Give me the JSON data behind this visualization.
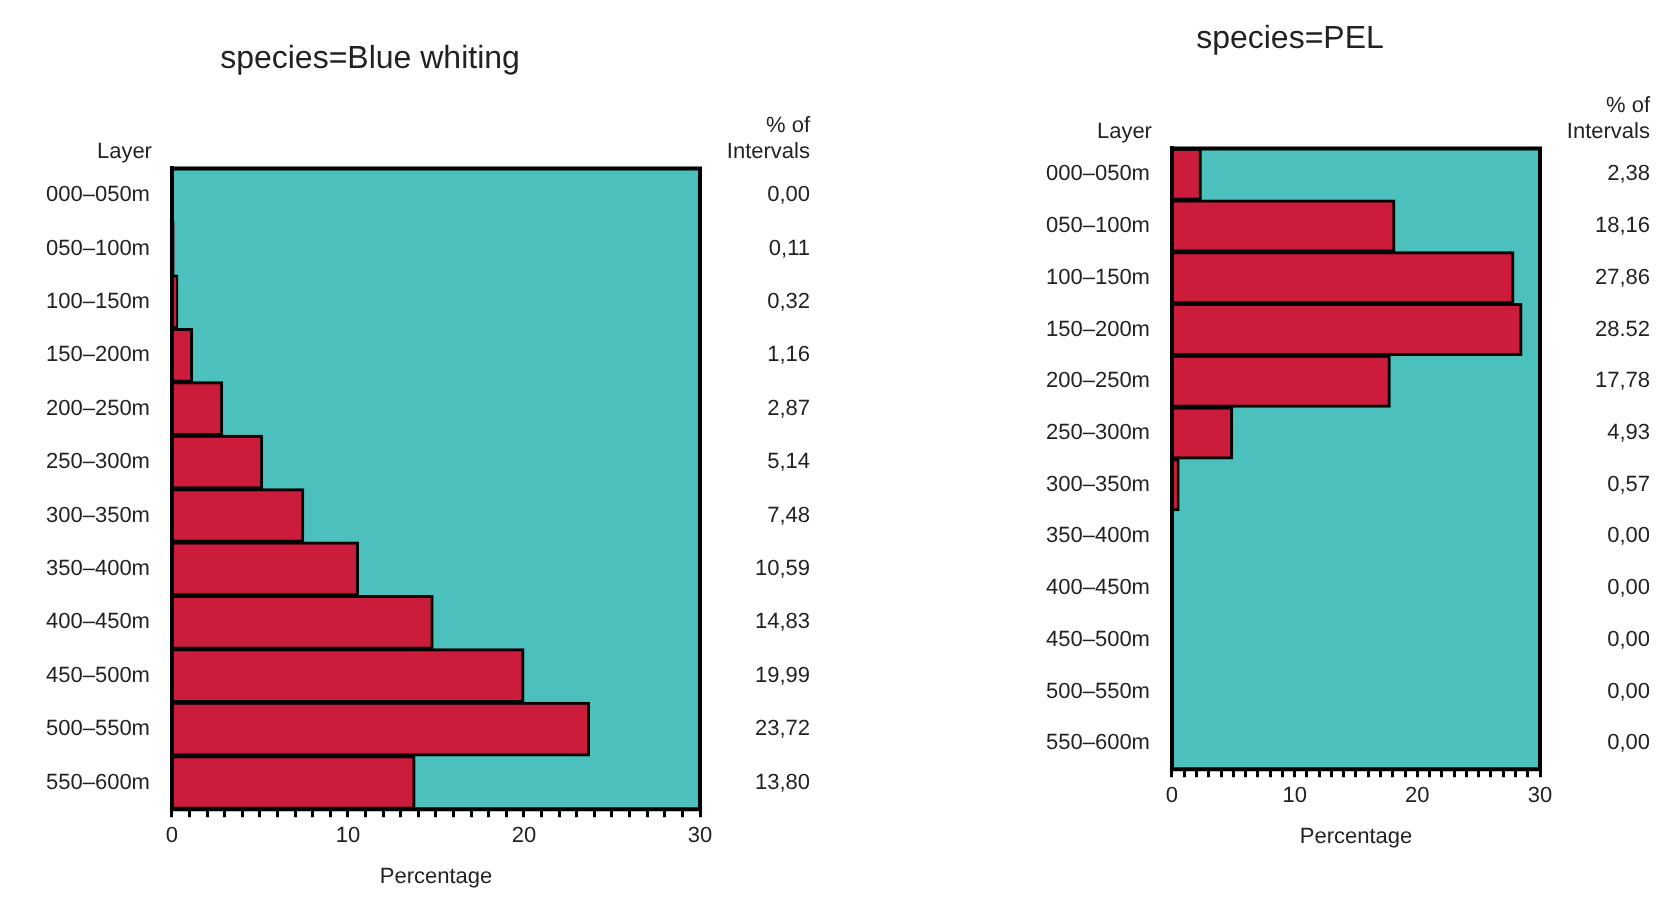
{
  "chart_data": [
    {
      "type": "bar",
      "orientation": "horizontal",
      "title": "species=Blue whiting",
      "xlabel": "Percentage",
      "ylabel": "Layer",
      "categories": [
        "000–050m",
        "050–100m",
        "100–150m",
        "150–200m",
        "200–250m",
        "250–300m",
        "300–350m",
        "350–400m",
        "400–450m",
        "450–500m",
        "500–550m",
        "550–600m"
      ],
      "values": [
        0,
        0.11,
        0.32,
        1.16,
        2.87,
        5.14,
        7.48,
        10.59,
        14.83,
        19.99,
        23.72,
        13.8
      ],
      "value_labels": [
        "0,00",
        "0,11",
        "0,32",
        "1,16",
        "2,87",
        "5,14",
        "7,48",
        "10,59",
        "14,83",
        "19,99",
        "23,72",
        "13,80"
      ],
      "color": "#cc1c3c",
      "annotations": [
        "% of\nIntervals"
      ],
      "xlim": [
        0,
        30
      ],
      "xticks": [
        0,
        {
          "value": 1,
          "label": null
        },
        {
          "value": 2,
          "label": null
        },
        {
          "value": 3,
          "label": null
        },
        {
          "value": 4,
          "label": null
        },
        {
          "value": 5,
          "label": null
        },
        {
          "value": 6,
          "label": null
        },
        {
          "value": 7,
          "label": null
        },
        {
          "value": 8,
          "label": null
        },
        {
          "value": 9,
          "label": null
        },
        10,
        {
          "value": 11,
          "label": null
        },
        {
          "value": 12,
          "label": null
        },
        {
          "value": 13,
          "label": null
        },
        {
          "value": 14,
          "label": null
        },
        {
          "value": 15,
          "label": null
        },
        {
          "value": 16,
          "label": null
        },
        {
          "value": 17,
          "label": null
        },
        {
          "value": 18,
          "label": null
        },
        {
          "value": 19,
          "label": null
        },
        20,
        {
          "value": 21,
          "label": null
        },
        {
          "value": 22,
          "label": null
        },
        {
          "value": 23,
          "label": null
        },
        {
          "value": 24,
          "label": null
        },
        {
          "value": 25,
          "label": null
        },
        {
          "value": 26,
          "label": null
        },
        {
          "value": 27,
          "label": null
        },
        {
          "value": 28,
          "label": null
        },
        {
          "value": 29,
          "label": null
        },
        30
      ],
      "legend": false
    },
    {
      "type": "bar",
      "orientation": "horizontal",
      "title": "species=PEL",
      "xlabel": "Percentage",
      "ylabel": "Layer",
      "categories": [
        "000–050m",
        "050–100m",
        "100–150m",
        "150–200m",
        "200–250m",
        "250–300m",
        "300–350m",
        "350–400m",
        "400–450m",
        "450–500m",
        "500–550m",
        "550–600m"
      ],
      "values": [
        2.38,
        18.16,
        27.86,
        28.52,
        17.78,
        4.93,
        0.57,
        0,
        0,
        0,
        0,
        0
      ],
      "value_labels": [
        "2,38",
        "18,16",
        "27,86",
        "28.52",
        "17,78",
        "4,93",
        "0,57",
        "0,00",
        "0,00",
        "0,00",
        "0,00",
        "0,00"
      ],
      "color": "#cc1c3c",
      "annotations": [
        "% of\nIntervals"
      ],
      "xlim": [
        0,
        30
      ],
      "xticks": [
        0,
        {
          "value": 1,
          "label": null
        },
        {
          "value": 2,
          "label": null
        },
        {
          "value": 3,
          "label": null
        },
        {
          "value": 4,
          "label": null
        },
        {
          "value": 5,
          "label": null
        },
        {
          "value": 6,
          "label": null
        },
        {
          "value": 7,
          "label": null
        },
        {
          "value": 8,
          "label": null
        },
        {
          "value": 9,
          "label": null
        },
        10,
        {
          "value": 11,
          "label": null
        },
        {
          "value": 12,
          "label": null
        },
        {
          "value": 13,
          "label": null
        },
        {
          "value": 14,
          "label": null
        },
        {
          "value": 15,
          "label": null
        },
        {
          "value": 16,
          "label": null
        },
        {
          "value": 17,
          "label": null
        },
        {
          "value": 18,
          "label": null
        },
        {
          "value": 19,
          "label": null
        },
        20,
        {
          "value": 21,
          "label": null
        },
        {
          "value": 22,
          "label": null
        },
        {
          "value": 23,
          "label": null
        },
        {
          "value": 24,
          "label": null
        },
        {
          "value": 25,
          "label": null
        },
        {
          "value": 26,
          "label": null
        },
        {
          "value": 27,
          "label": null
        },
        {
          "value": 28,
          "label": null
        },
        {
          "value": 29,
          "label": null
        },
        30
      ],
      "legend": false
    }
  ]
}
